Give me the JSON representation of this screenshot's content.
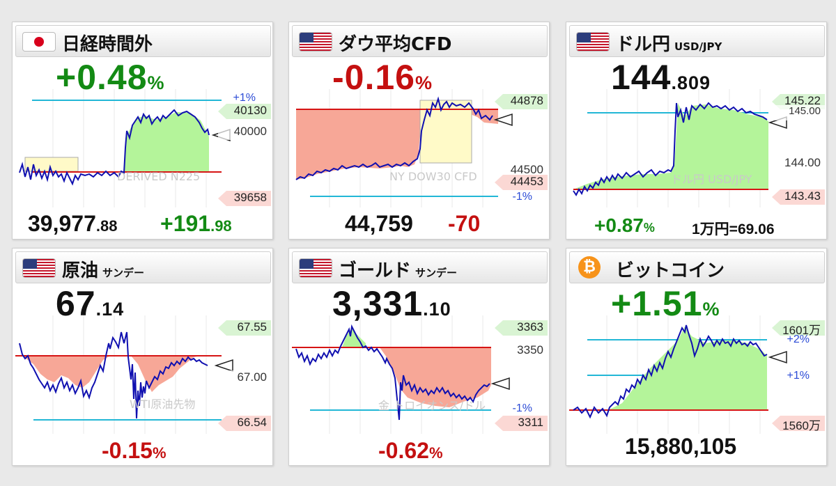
{
  "cards": [
    {
      "title": "日経時間外",
      "sub": "",
      "big": "+0.48",
      "big_suffix": "%",
      "tags": {
        "high": "40130",
        "mid": "40000",
        "low": "39658"
      },
      "plus_label": "+1%",
      "watermark": "DERIVED N225",
      "value_main": "39,977",
      "value_dec": ".88",
      "change_main": "+191",
      "change_dec": ".98",
      "flag": "jp-flag"
    },
    {
      "title": "ダウ平均CFD",
      "sub": "",
      "big": "-0.16",
      "big_suffix": "%",
      "tags": {
        "high": "44878",
        "mid": "44500",
        "low": "44453"
      },
      "minus_label": "-1%",
      "watermark": "NY DOW30 CFD",
      "value_main": "44,759",
      "change_main": "-70",
      "flag": "us-flag"
    },
    {
      "title": "ドル円",
      "sub": "USD/JPY",
      "big_main": "144",
      "big_dec": ".809",
      "tags": {
        "high": "145.22",
        "mid_top": "145.00",
        "mid": "144.00",
        "low": "143.43"
      },
      "watermark": "ドル円 USD/JPY",
      "pct": "+0.87",
      "pct_suffix": "%",
      "yen": "1万円=69.06",
      "flag": "us-flag"
    },
    {
      "title": "原油",
      "sub": "サンデー",
      "big_main": "67",
      "big_dec": ".14",
      "tags": {
        "high": "67.55",
        "mid": "67.00",
        "low": "66.54"
      },
      "watermark": "WTI原油先物",
      "pct": "-0.15",
      "pct_suffix": "%",
      "flag": "us-flag"
    },
    {
      "title": "ゴールド",
      "sub": "サンデー",
      "big_main": "3,331",
      "big_dec": ".10",
      "tags": {
        "high": "3363",
        "mid": "3350",
        "low": "3311"
      },
      "minus_label": "-1%",
      "watermark": "金 トロイオンス/ドル",
      "pct": "-0.62",
      "pct_suffix": "%",
      "flag": "us-flag"
    },
    {
      "title": "ビットコイン",
      "sub": "",
      "big": "+1.51",
      "big_suffix": "%",
      "tags": {
        "high": "1601万",
        "low": "1560万"
      },
      "plus_label": "+2%",
      "plus1_label": "+1%",
      "value_main": "15,880,105",
      "icon": "₿"
    }
  ],
  "colors": {
    "up": "#138a14",
    "down": "#c41010",
    "line": "#1010b0",
    "green_fill": "#b4f49a",
    "red_fill": "#f7a797",
    "yellow_box": "#fffac8",
    "ref_red": "#d61414",
    "ref_cyan": "#22b7d6"
  }
}
